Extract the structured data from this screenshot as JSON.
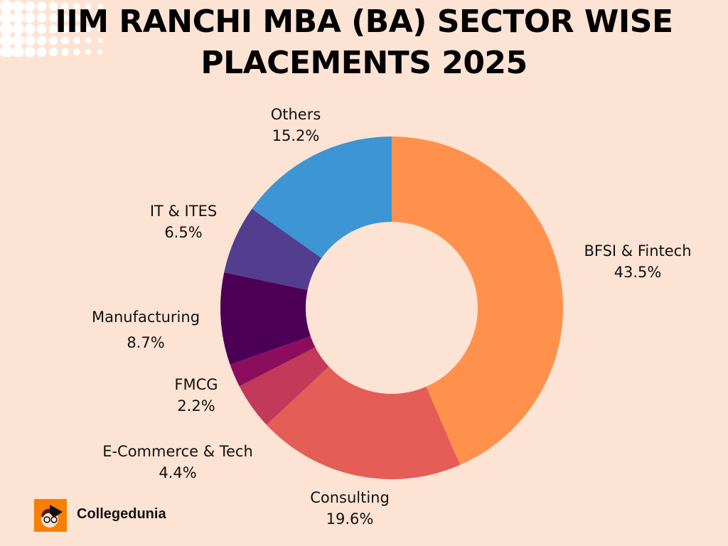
{
  "chart_data": {
    "type": "pie",
    "donut": true,
    "title": "IIM RANCHI MBA (BA) SECTOR WISE PLACEMENTS 2025",
    "title_lines": [
      "IIM RANCHI MBA (BA) SECTOR WISE",
      "PLACEMENTS 2025"
    ],
    "slices": [
      {
        "label": "BFSI & Fintech",
        "value": 43.5,
        "display": "43.5%",
        "color": "#ff914d"
      },
      {
        "label": "Consulting",
        "value": 19.6,
        "display": "19.6%",
        "color": "#e45d57"
      },
      {
        "label": "E-Commerce & Tech",
        "value": 4.4,
        "display": "4.4%",
        "color": "#c2395a"
      },
      {
        "label": "FMCG",
        "value": 2.2,
        "display": "2.2%",
        "color": "#8c0d5e"
      },
      {
        "label": "Manufacturing",
        "value": 8.7,
        "display": "8.7%",
        "color": "#4b0055"
      },
      {
        "label": "IT & ITES",
        "value": 6.5,
        "display": "6.5%",
        "color": "#523d8e"
      },
      {
        "label": "Others",
        "value": 15.2,
        "display": "15.2%",
        "color": "#3d95d4"
      }
    ],
    "start": "top",
    "direction": "clockwise"
  },
  "background": "#fde3d3",
  "brand": {
    "name": "Collegedunia",
    "logo_color": "#f77f00"
  }
}
